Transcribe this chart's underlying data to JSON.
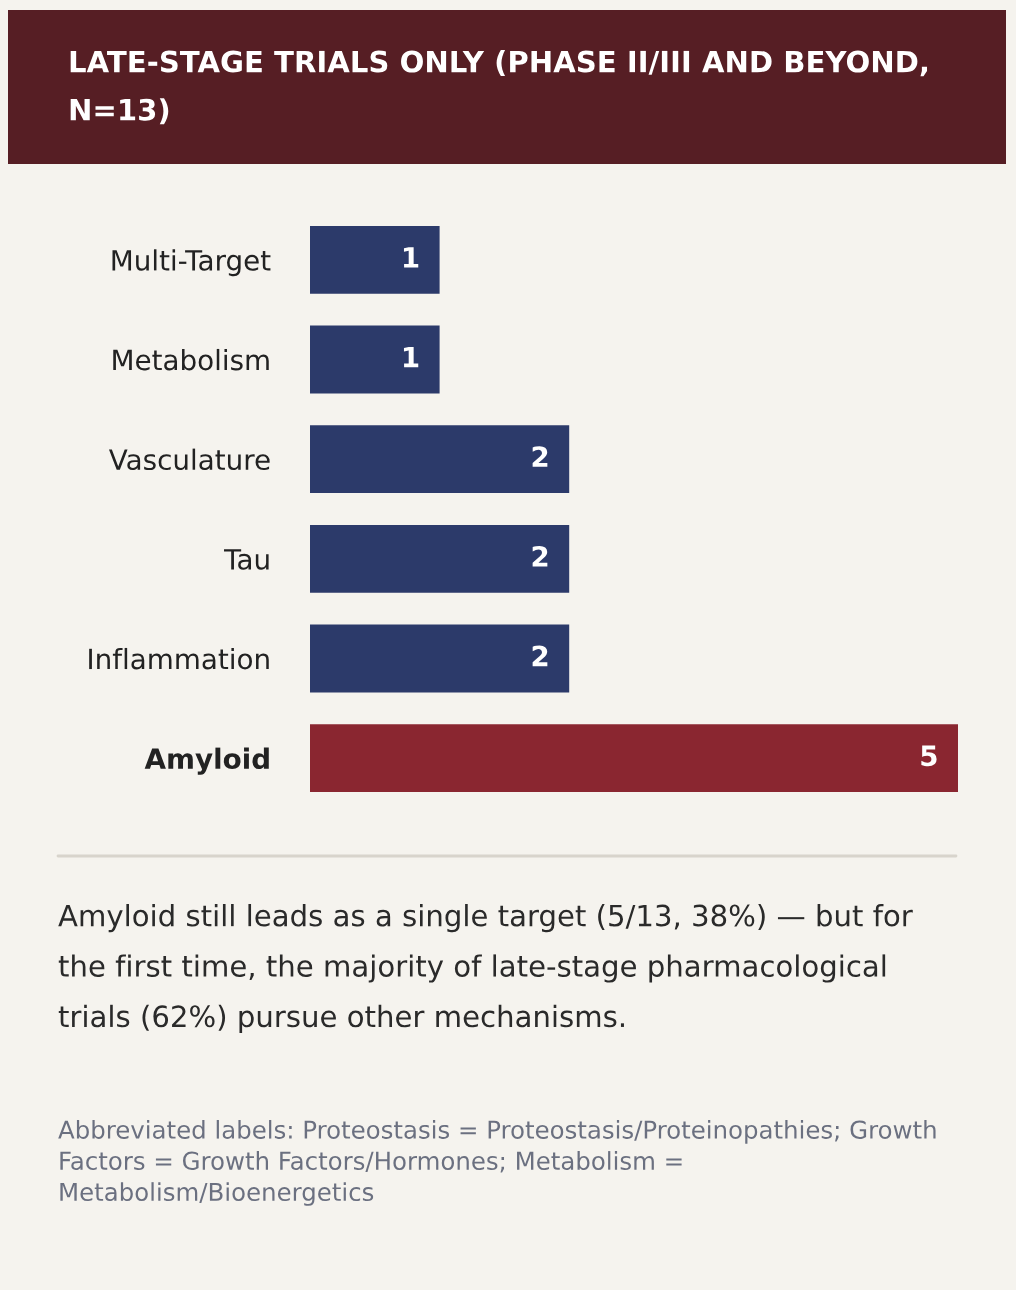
{
  "chart_data": {
    "type": "bar",
    "orientation": "horizontal",
    "title": "LATE-STAGE TRIALS ONLY (PHASE II/III AND BEYOND, N=13)",
    "categories": [
      "Multi-Target",
      "Metabolism",
      "Vasculature",
      "Tau",
      "Inflammation",
      "Amyloid"
    ],
    "values": [
      1,
      1,
      2,
      2,
      2,
      5
    ],
    "colors": [
      "#2c3a6a",
      "#2c3a6a",
      "#2c3a6a",
      "#2c3a6a",
      "#2c3a6a",
      "#8a2630"
    ],
    "data_labels": true,
    "annotations": [
      "Amyloid still leads as a single target (5/13, 38%) — but for the first time, the majority of late-stage pharmacological trials (62%) pursue other mechanisms.",
      "Abbreviated labels: Proteostasis = Proteostasis/Proteinopathies; Growth Factors = Growth Factors/Hormones; Metabolism = Metabolism/Bioenergetics"
    ]
  }
}
